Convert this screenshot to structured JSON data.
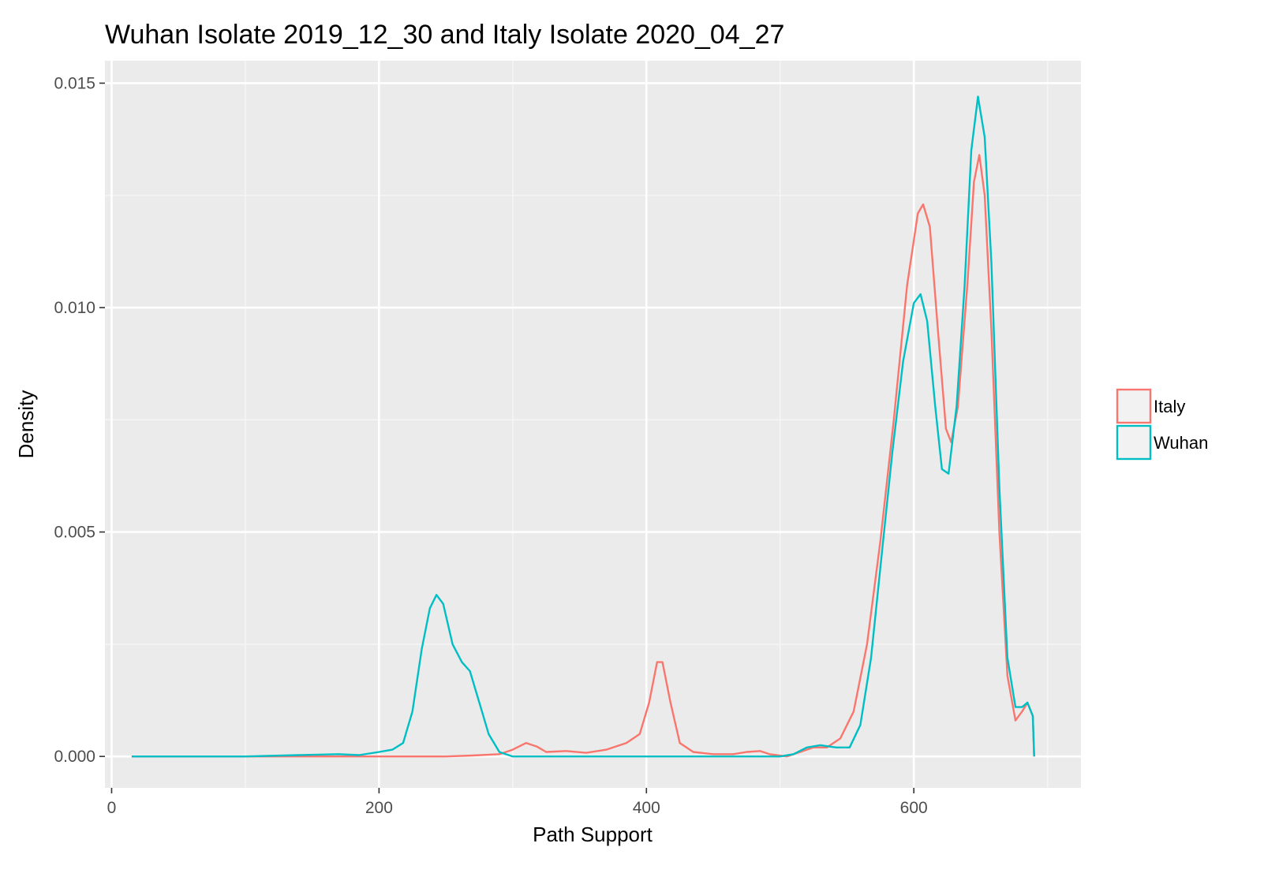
{
  "chart_data": {
    "type": "line",
    "title": "Wuhan Isolate 2019_12_30 and Italy Isolate 2020_04_27",
    "xlabel": "Path Support",
    "ylabel": "Density",
    "xlim": [
      -5,
      725
    ],
    "ylim": [
      -0.0007,
      0.0155
    ],
    "x_ticks": [
      0,
      200,
      400,
      600
    ],
    "x_tick_labels": [
      "0",
      "200",
      "400",
      "600"
    ],
    "y_ticks": [
      0.0,
      0.005,
      0.01,
      0.015
    ],
    "y_tick_labels": [
      "0.000",
      "0.005",
      "0.010",
      "0.015"
    ],
    "grid": true,
    "legend_position": "right",
    "series": [
      {
        "name": "Italy",
        "color": "#F8766D",
        "points": [
          [
            15,
            0.0
          ],
          [
            150,
            0.0
          ],
          [
            250,
            0.0
          ],
          [
            270,
            2e-05
          ],
          [
            290,
            5e-05
          ],
          [
            300,
            0.00015
          ],
          [
            310,
            0.0003
          ],
          [
            318,
            0.00022
          ],
          [
            325,
            0.0001
          ],
          [
            340,
            0.00012
          ],
          [
            355,
            8e-05
          ],
          [
            370,
            0.00015
          ],
          [
            385,
            0.0003
          ],
          [
            395,
            0.0005
          ],
          [
            402,
            0.0012
          ],
          [
            408,
            0.0021
          ],
          [
            412,
            0.0021
          ],
          [
            418,
            0.0012
          ],
          [
            425,
            0.0003
          ],
          [
            435,
            0.0001
          ],
          [
            450,
            5e-05
          ],
          [
            465,
            5e-05
          ],
          [
            475,
            0.0001
          ],
          [
            485,
            0.00012
          ],
          [
            492,
            5e-05
          ],
          [
            505,
            0.0
          ],
          [
            515,
            0.0001
          ],
          [
            525,
            0.0002
          ],
          [
            535,
            0.0002
          ],
          [
            545,
            0.0004
          ],
          [
            555,
            0.001
          ],
          [
            565,
            0.0025
          ],
          [
            575,
            0.0048
          ],
          [
            585,
            0.0075
          ],
          [
            595,
            0.0105
          ],
          [
            603,
            0.0121
          ],
          [
            607,
            0.0123
          ],
          [
            612,
            0.0118
          ],
          [
            618,
            0.0095
          ],
          [
            624,
            0.0073
          ],
          [
            628,
            0.007
          ],
          [
            633,
            0.0078
          ],
          [
            640,
            0.0105
          ],
          [
            645,
            0.0128
          ],
          [
            649,
            0.0134
          ],
          [
            653,
            0.0125
          ],
          [
            658,
            0.0095
          ],
          [
            664,
            0.005
          ],
          [
            670,
            0.0018
          ],
          [
            676,
            0.0008
          ],
          [
            681,
            0.001
          ],
          [
            685,
            0.0012
          ],
          [
            689,
            0.0009
          ],
          [
            690,
            0.0
          ]
        ]
      },
      {
        "name": "Wuhan",
        "color": "#00BFC4",
        "points": [
          [
            15,
            0.0
          ],
          [
            100,
            0.0
          ],
          [
            140,
            3e-05
          ],
          [
            170,
            5e-05
          ],
          [
            185,
            3e-05
          ],
          [
            200,
            0.0001
          ],
          [
            210,
            0.00015
          ],
          [
            218,
            0.0003
          ],
          [
            225,
            0.001
          ],
          [
            232,
            0.0024
          ],
          [
            238,
            0.0033
          ],
          [
            243,
            0.0036
          ],
          [
            248,
            0.0034
          ],
          [
            255,
            0.0025
          ],
          [
            262,
            0.0021
          ],
          [
            268,
            0.0019
          ],
          [
            275,
            0.0012
          ],
          [
            282,
            0.0005
          ],
          [
            290,
            0.0001
          ],
          [
            300,
            0.0
          ],
          [
            400,
            0.0
          ],
          [
            500,
            0.0
          ],
          [
            510,
            5e-05
          ],
          [
            520,
            0.0002
          ],
          [
            530,
            0.00025
          ],
          [
            542,
            0.0002
          ],
          [
            552,
            0.0002
          ],
          [
            560,
            0.0007
          ],
          [
            568,
            0.0022
          ],
          [
            576,
            0.0045
          ],
          [
            584,
            0.0068
          ],
          [
            592,
            0.0088
          ],
          [
            600,
            0.0101
          ],
          [
            605,
            0.0103
          ],
          [
            610,
            0.0097
          ],
          [
            616,
            0.0078
          ],
          [
            621,
            0.0064
          ],
          [
            626,
            0.0063
          ],
          [
            632,
            0.0078
          ],
          [
            638,
            0.0105
          ],
          [
            643,
            0.0135
          ],
          [
            648,
            0.0147
          ],
          [
            653,
            0.0138
          ],
          [
            658,
            0.011
          ],
          [
            664,
            0.006
          ],
          [
            670,
            0.0022
          ],
          [
            676,
            0.0011
          ],
          [
            681,
            0.0011
          ],
          [
            685,
            0.0012
          ],
          [
            689,
            0.0009
          ],
          [
            690,
            0.0
          ]
        ]
      }
    ]
  }
}
